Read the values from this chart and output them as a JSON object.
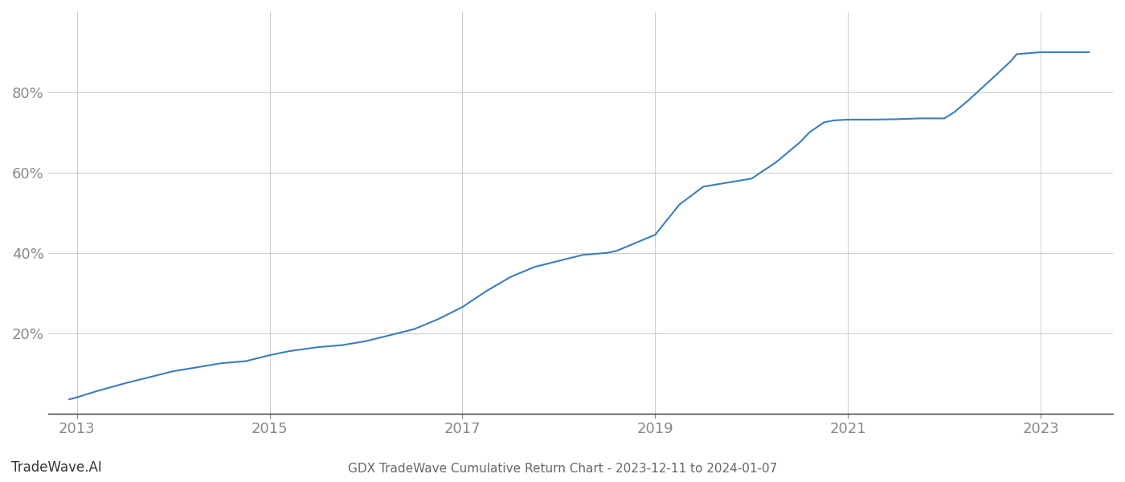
{
  "title": "GDX TradeWave Cumulative Return Chart - 2023-12-11 to 2024-01-07",
  "line_color": "#3a7ebf",
  "line_width": 1.5,
  "background_color": "#ffffff",
  "grid_color": "#cccccc",
  "watermark": "TradeWave.AI",
  "x_years": [
    2012.92,
    2013.0,
    2013.2,
    2013.5,
    2013.75,
    2014.0,
    2014.25,
    2014.5,
    2014.75,
    2015.0,
    2015.2,
    2015.35,
    2015.5,
    2015.75,
    2016.0,
    2016.25,
    2016.5,
    2016.75,
    2017.0,
    2017.25,
    2017.5,
    2017.75,
    2018.0,
    2018.25,
    2018.5,
    2018.6,
    2018.75,
    2019.0,
    2019.1,
    2019.25,
    2019.5,
    2019.75,
    2020.0,
    2020.25,
    2020.5,
    2020.6,
    2020.75,
    2020.85,
    2021.0,
    2021.25,
    2021.5,
    2021.75,
    2021.9,
    2022.0,
    2022.1,
    2022.25,
    2022.5,
    2022.7,
    2022.75,
    2023.0,
    2023.25,
    2023.5
  ],
  "y_values": [
    3.5,
    4.0,
    5.5,
    7.5,
    9.0,
    10.5,
    11.5,
    12.5,
    13.0,
    14.5,
    15.5,
    16.0,
    16.5,
    17.0,
    18.0,
    19.5,
    21.0,
    23.5,
    26.5,
    30.5,
    34.0,
    36.5,
    38.0,
    39.5,
    40.0,
    40.5,
    42.0,
    44.5,
    47.5,
    52.0,
    56.5,
    57.5,
    58.5,
    62.5,
    67.5,
    70.0,
    72.5,
    73.0,
    73.2,
    73.2,
    73.3,
    73.5,
    73.5,
    73.5,
    75.0,
    78.0,
    83.5,
    88.0,
    89.5,
    90.0,
    90.0,
    90.0
  ],
  "yticks": [
    20,
    40,
    60,
    80
  ],
  "xticks": [
    2013,
    2015,
    2017,
    2019,
    2021,
    2023
  ],
  "xlim": [
    2012.7,
    2023.75
  ],
  "ylim": [
    0,
    100
  ]
}
